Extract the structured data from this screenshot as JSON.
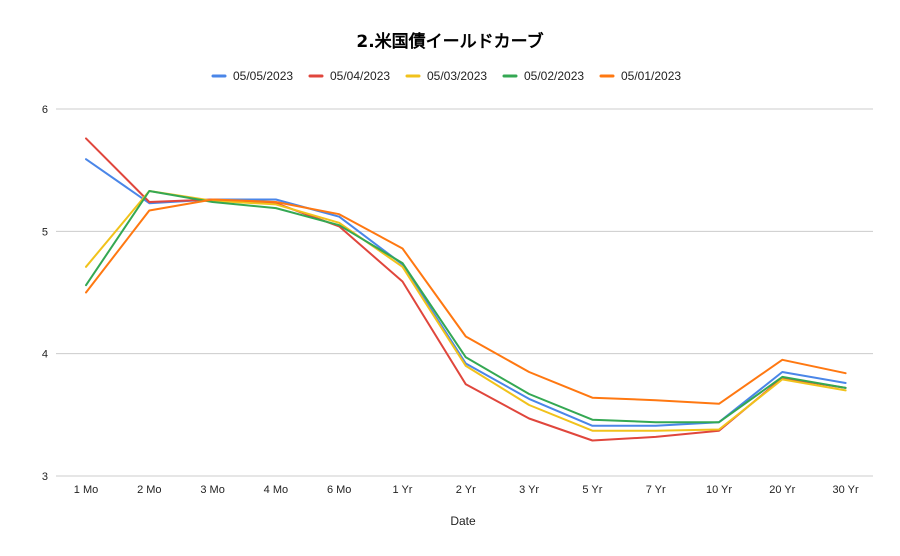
{
  "chart_data": {
    "type": "line",
    "title": "2.米国債イールドカーブ",
    "xlabel": "Date",
    "ylabel": "",
    "categories": [
      "1 Mo",
      "2 Mo",
      "3 Mo",
      "4 Mo",
      "6 Mo",
      "1 Yr",
      "2 Yr",
      "3 Yr",
      "5 Yr",
      "7 Yr",
      "10 Yr",
      "20 Yr",
      "30 Yr"
    ],
    "ylim": [
      3,
      6
    ],
    "yticks": [
      "3",
      "4",
      "5",
      "6"
    ],
    "grid": true,
    "legend_position": "top",
    "series": [
      {
        "name": "05/05/2023",
        "color": "#4a86e8",
        "values": [
          5.59,
          5.23,
          5.26,
          5.26,
          5.12,
          4.73,
          3.92,
          3.63,
          3.41,
          3.41,
          3.44,
          3.85,
          3.76
        ]
      },
      {
        "name": "05/04/2023",
        "color": "#e0463c",
        "values": [
          5.76,
          5.24,
          5.26,
          5.23,
          5.04,
          4.59,
          3.75,
          3.47,
          3.29,
          3.32,
          3.37,
          3.8,
          3.72
        ]
      },
      {
        "name": "05/03/2023",
        "color": "#f1c21b",
        "values": [
          4.71,
          5.33,
          5.25,
          5.22,
          5.07,
          4.71,
          3.9,
          3.58,
          3.37,
          3.37,
          3.38,
          3.79,
          3.7
        ]
      },
      {
        "name": "05/02/2023",
        "color": "#34a853",
        "values": [
          4.56,
          5.33,
          5.24,
          5.19,
          5.05,
          4.74,
          3.97,
          3.67,
          3.46,
          3.44,
          3.44,
          3.81,
          3.72
        ]
      },
      {
        "name": "05/01/2023",
        "color": "#ff7811",
        "values": [
          4.5,
          5.17,
          5.26,
          5.24,
          5.14,
          4.86,
          4.14,
          3.85,
          3.64,
          3.62,
          3.59,
          3.95,
          3.84
        ]
      }
    ]
  }
}
